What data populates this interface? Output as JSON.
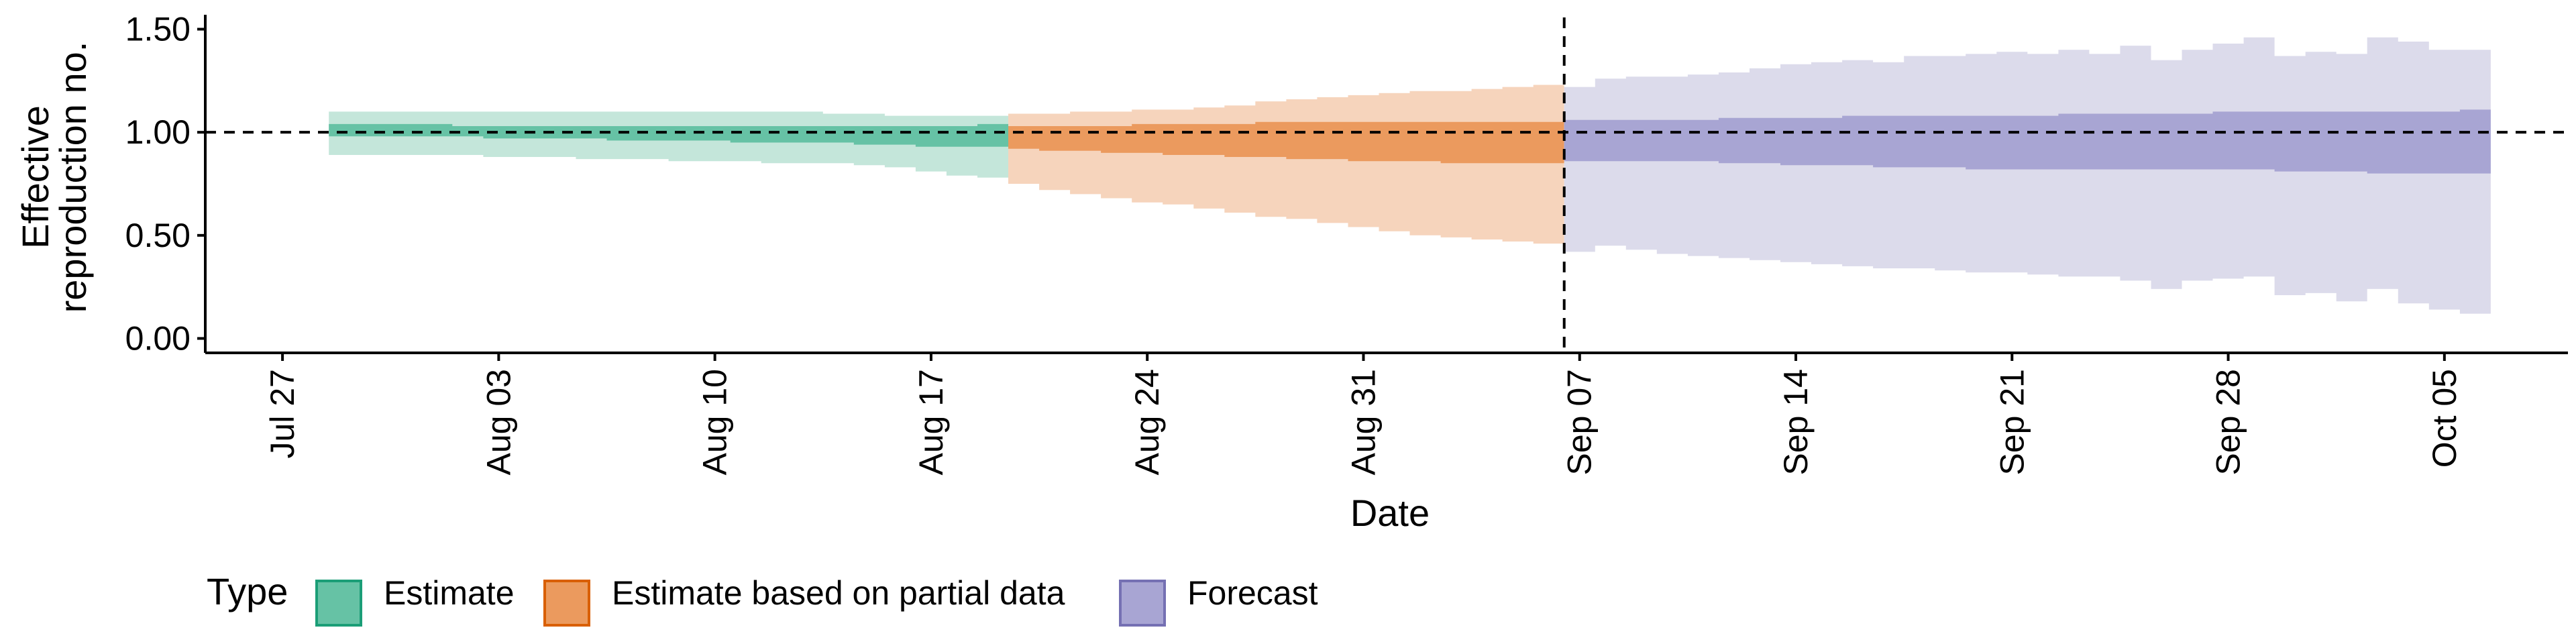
{
  "chart_data": {
    "type": "area",
    "xlabel": "Date",
    "ylabel_lines": [
      "Effective",
      "reproduction no."
    ],
    "x_ticks": [
      {
        "date": "2020-07-27",
        "label": "Jul 27"
      },
      {
        "date": "2020-08-03",
        "label": "Aug 03"
      },
      {
        "date": "2020-08-10",
        "label": "Aug 10"
      },
      {
        "date": "2020-08-17",
        "label": "Aug 17"
      },
      {
        "date": "2020-08-24",
        "label": "Aug 24"
      },
      {
        "date": "2020-08-31",
        "label": "Aug 31"
      },
      {
        "date": "2020-09-07",
        "label": "Sep 07"
      },
      {
        "date": "2020-09-14",
        "label": "Sep 14"
      },
      {
        "date": "2020-09-21",
        "label": "Sep 21"
      },
      {
        "date": "2020-09-28",
        "label": "Sep 28"
      },
      {
        "date": "2020-10-05",
        "label": "Oct 05"
      }
    ],
    "xlim": [
      "2020-07-24T12:00",
      "2020-10-09"
    ],
    "y_ticks": [
      {
        "value": 0,
        "label": "0.00"
      },
      {
        "value": 0.5,
        "label": "0.50"
      },
      {
        "value": 1,
        "label": "1.00"
      },
      {
        "value": 1.5,
        "label": "1.50"
      }
    ],
    "ylim": [
      -0.07,
      1.57
    ],
    "reference_line": {
      "y": 1.0,
      "style": "dashed",
      "color": "#000000"
    },
    "forecast_date_line": {
      "date": "2020-09-06",
      "style": "dashed",
      "color": "#000000"
    },
    "grid": false,
    "legend": {
      "title": "Type",
      "position": "bottom-left",
      "entries": [
        {
          "label": "Estimate",
          "fill": "#66C2A5",
          "border": "#1B9E77"
        },
        {
          "label": "Estimate based on partial data",
          "fill": "#EB9A5E",
          "border": "#D95F02"
        },
        {
          "label": "Forecast",
          "fill": "#A8A5D3",
          "border": "#7570B3"
        }
      ]
    },
    "series": [
      {
        "type_label": "Estimate",
        "colors": {
          "outer": "#C4E6DA",
          "inner": "#66C2A5"
        },
        "dates": [
          "2020-07-29",
          "2020-07-30",
          "2020-07-31",
          "2020-08-01",
          "2020-08-02",
          "2020-08-03",
          "2020-08-04",
          "2020-08-05",
          "2020-08-06",
          "2020-08-07",
          "2020-08-08",
          "2020-08-09",
          "2020-08-10",
          "2020-08-11",
          "2020-08-12",
          "2020-08-13",
          "2020-08-14",
          "2020-08-15",
          "2020-08-16",
          "2020-08-17",
          "2020-08-18",
          "2020-08-19"
        ],
        "outer_lower": [
          0.89,
          0.89,
          0.89,
          0.89,
          0.89,
          0.88,
          0.88,
          0.88,
          0.87,
          0.87,
          0.87,
          0.86,
          0.86,
          0.86,
          0.85,
          0.85,
          0.85,
          0.84,
          0.83,
          0.81,
          0.79,
          0.78
        ],
        "outer_upper": [
          1.1,
          1.1,
          1.1,
          1.1,
          1.1,
          1.1,
          1.1,
          1.1,
          1.1,
          1.1,
          1.1,
          1.1,
          1.1,
          1.1,
          1.1,
          1.1,
          1.09,
          1.09,
          1.08,
          1.08,
          1.08,
          1.08
        ],
        "inner_lower": [
          0.98,
          0.98,
          0.98,
          0.98,
          0.98,
          0.97,
          0.97,
          0.97,
          0.97,
          0.96,
          0.96,
          0.96,
          0.96,
          0.95,
          0.95,
          0.95,
          0.95,
          0.94,
          0.94,
          0.93,
          0.93,
          0.93
        ],
        "inner_upper": [
          1.04,
          1.04,
          1.04,
          1.04,
          1.03,
          1.03,
          1.03,
          1.03,
          1.03,
          1.03,
          1.03,
          1.03,
          1.03,
          1.03,
          1.03,
          1.03,
          1.03,
          1.03,
          1.03,
          1.03,
          1.03,
          1.04
        ]
      },
      {
        "type_label": "Estimate based on partial data",
        "colors": {
          "outer": "#F6D4BC",
          "inner": "#EB9A5E"
        },
        "dates": [
          "2020-08-20",
          "2020-08-21",
          "2020-08-22",
          "2020-08-23",
          "2020-08-24",
          "2020-08-25",
          "2020-08-26",
          "2020-08-27",
          "2020-08-28",
          "2020-08-29",
          "2020-08-30",
          "2020-08-31",
          "2020-09-01",
          "2020-09-02",
          "2020-09-03",
          "2020-09-04",
          "2020-09-05",
          "2020-09-06"
        ],
        "outer_lower": [
          0.75,
          0.72,
          0.7,
          0.68,
          0.66,
          0.65,
          0.63,
          0.61,
          0.59,
          0.58,
          0.56,
          0.54,
          0.52,
          0.5,
          0.49,
          0.48,
          0.47,
          0.46
        ],
        "outer_upper": [
          1.09,
          1.09,
          1.1,
          1.1,
          1.11,
          1.11,
          1.12,
          1.13,
          1.15,
          1.16,
          1.17,
          1.18,
          1.19,
          1.2,
          1.2,
          1.21,
          1.22,
          1.23
        ],
        "inner_lower": [
          0.92,
          0.91,
          0.91,
          0.9,
          0.9,
          0.89,
          0.89,
          0.88,
          0.88,
          0.87,
          0.87,
          0.86,
          0.86,
          0.86,
          0.85,
          0.85,
          0.85,
          0.85
        ],
        "inner_upper": [
          1.03,
          1.03,
          1.03,
          1.03,
          1.04,
          1.04,
          1.04,
          1.04,
          1.05,
          1.05,
          1.05,
          1.05,
          1.05,
          1.05,
          1.05,
          1.05,
          1.05,
          1.05
        ]
      },
      {
        "type_label": "Forecast",
        "colors": {
          "outer": "#DCDBEB",
          "inner": "#A8A5D3"
        },
        "dates": [
          "2020-09-07",
          "2020-09-08",
          "2020-09-09",
          "2020-09-10",
          "2020-09-11",
          "2020-09-12",
          "2020-09-13",
          "2020-09-14",
          "2020-09-15",
          "2020-09-16",
          "2020-09-17",
          "2020-09-18",
          "2020-09-19",
          "2020-09-20",
          "2020-09-21",
          "2020-09-22",
          "2020-09-23",
          "2020-09-24",
          "2020-09-25",
          "2020-09-26",
          "2020-09-27",
          "2020-09-28",
          "2020-09-29",
          "2020-09-30",
          "2020-10-01",
          "2020-10-02",
          "2020-10-03",
          "2020-10-04",
          "2020-10-05",
          "2020-10-06"
        ],
        "outer_lower": [
          0.42,
          0.45,
          0.43,
          0.41,
          0.4,
          0.39,
          0.38,
          0.37,
          0.36,
          0.35,
          0.34,
          0.34,
          0.33,
          0.32,
          0.32,
          0.31,
          0.3,
          0.3,
          0.28,
          0.24,
          0.28,
          0.29,
          0.3,
          0.21,
          0.22,
          0.18,
          0.24,
          0.17,
          0.14,
          0.12
        ],
        "outer_upper": [
          1.22,
          1.26,
          1.27,
          1.27,
          1.28,
          1.29,
          1.31,
          1.33,
          1.34,
          1.35,
          1.34,
          1.37,
          1.37,
          1.38,
          1.39,
          1.38,
          1.4,
          1.38,
          1.42,
          1.35,
          1.4,
          1.43,
          1.46,
          1.37,
          1.39,
          1.38,
          1.46,
          1.44,
          1.4,
          1.4
        ],
        "inner_lower": [
          0.86,
          0.86,
          0.86,
          0.86,
          0.86,
          0.85,
          0.85,
          0.84,
          0.84,
          0.84,
          0.83,
          0.83,
          0.83,
          0.82,
          0.82,
          0.82,
          0.82,
          0.82,
          0.82,
          0.82,
          0.82,
          0.82,
          0.82,
          0.81,
          0.81,
          0.81,
          0.8,
          0.8,
          0.8,
          0.8
        ],
        "inner_upper": [
          1.06,
          1.06,
          1.06,
          1.06,
          1.06,
          1.07,
          1.07,
          1.07,
          1.07,
          1.08,
          1.08,
          1.08,
          1.08,
          1.08,
          1.08,
          1.08,
          1.09,
          1.09,
          1.09,
          1.09,
          1.09,
          1.1,
          1.1,
          1.1,
          1.1,
          1.1,
          1.1,
          1.1,
          1.1,
          1.11
        ]
      }
    ]
  }
}
